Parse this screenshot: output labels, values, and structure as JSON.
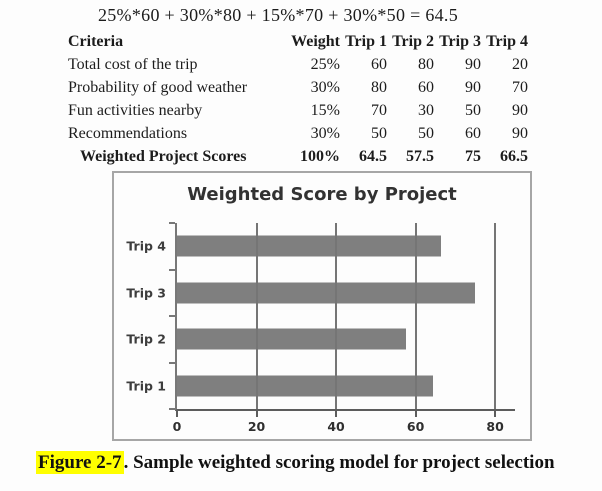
{
  "formula": "25%*60 + 30%*80 + 15%*70 + 30%*50 = 64.5",
  "table": {
    "headers": [
      "Criteria",
      "Weight",
      "Trip 1",
      "Trip 2",
      "Trip 3",
      "Trip 4"
    ],
    "rows": [
      {
        "criteria": "Total cost of the trip",
        "weight": "25%",
        "values": [
          "60",
          "80",
          "90",
          "20"
        ],
        "bold": false
      },
      {
        "criteria": "Probability of good weather",
        "weight": "30%",
        "values": [
          "80",
          "60",
          "90",
          "70"
        ],
        "bold": false
      },
      {
        "criteria": "Fun activities nearby",
        "weight": "15%",
        "values": [
          "70",
          "30",
          "50",
          "90"
        ],
        "bold": false
      },
      {
        "criteria": "Recommendations",
        "weight": "30%",
        "values": [
          "50",
          "50",
          "60",
          "90"
        ],
        "bold": false
      },
      {
        "criteria": "Weighted Project Scores",
        "weight": "100%",
        "values": [
          "64.5",
          "57.5",
          "75",
          "66.5"
        ],
        "bold": true
      }
    ]
  },
  "chart_data": {
    "type": "bar",
    "orientation": "horizontal",
    "title": "Weighted Score by Project",
    "categories": [
      "Trip 4",
      "Trip 3",
      "Trip 2",
      "Trip 1"
    ],
    "values": [
      66.5,
      75,
      57.5,
      64.5
    ],
    "xlabel": "",
    "ylabel": "",
    "xlim": [
      0,
      85
    ],
    "xticks": [
      0,
      20,
      40,
      60,
      80
    ],
    "grid": true,
    "legend": false,
    "bar_color": "#7f7f7f",
    "gridline_color": "#757575"
  },
  "caption": {
    "label": "Figure 2-7",
    "text": ". Sample weighted scoring model for project selection",
    "highlight_color": "#ffff00"
  }
}
